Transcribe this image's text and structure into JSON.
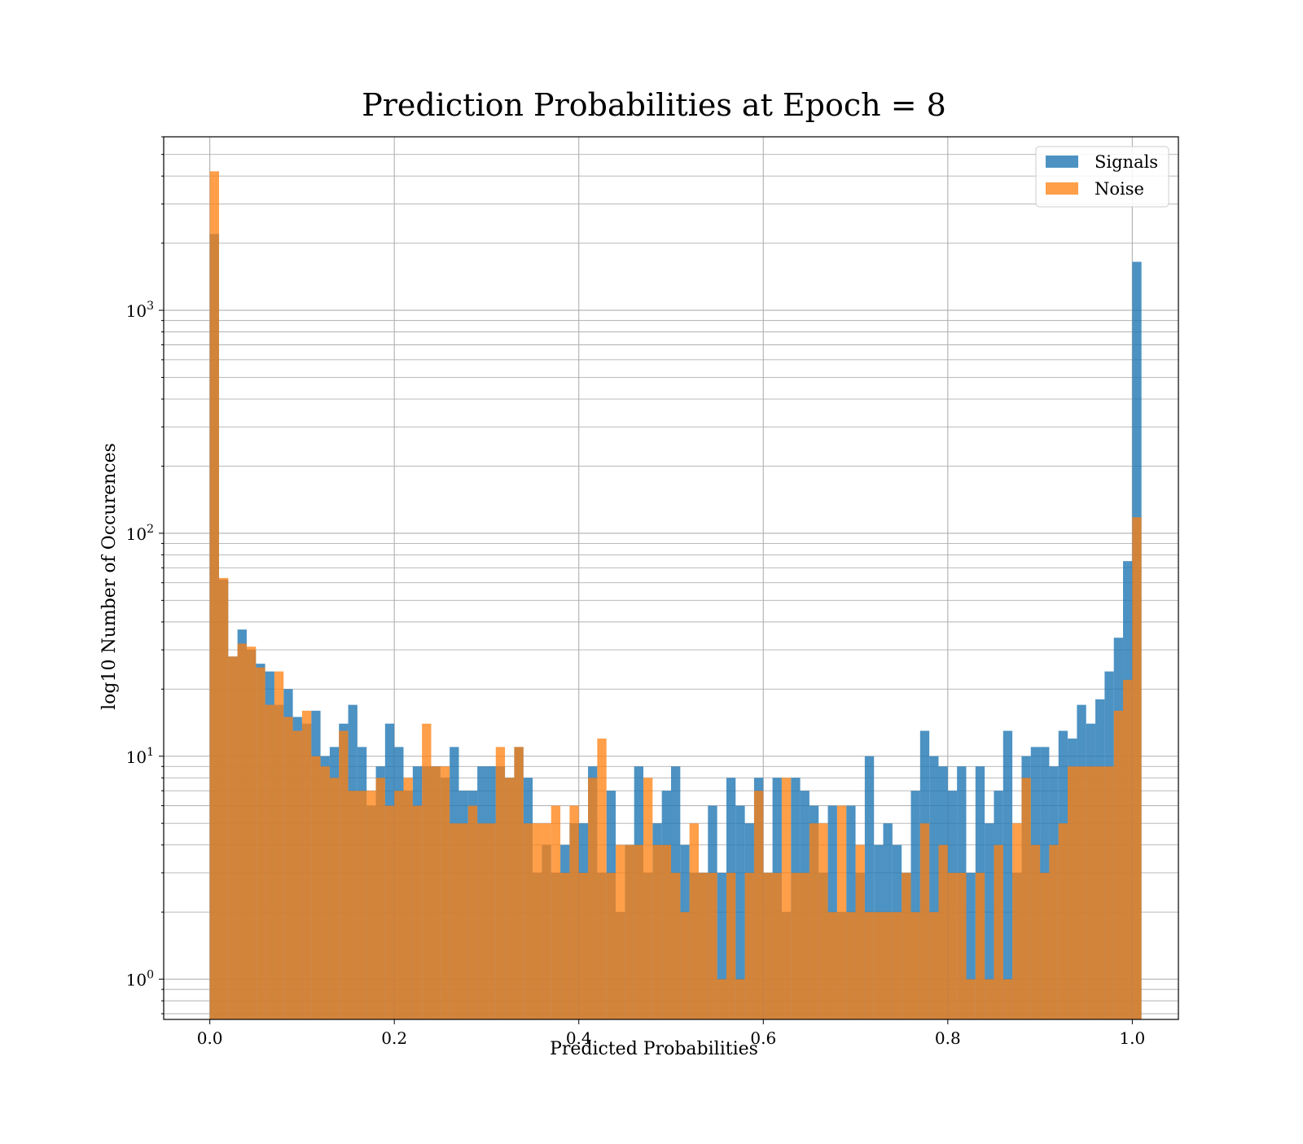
{
  "chart_data": {
    "type": "bar",
    "title": "Prediction Probabilities at Epoch = 8",
    "xlabel": "Predicted Probabilities",
    "ylabel": "log10 Number of Occurences",
    "yscale": "log",
    "xlim": [
      -0.05,
      1.05
    ],
    "ylim": [
      0.66,
      6000
    ],
    "grid": true,
    "legend_position": "top-right",
    "bin_start": 0.0,
    "bin_width": 0.01,
    "x_ticks": [
      "0.0",
      "0.2",
      "0.4",
      "0.6",
      "0.8",
      "1.0"
    ],
    "x_tick_values": [
      0.0,
      0.2,
      0.4,
      0.6,
      0.8,
      1.0
    ],
    "y_tick_values": [
      1,
      10,
      100,
      1000
    ],
    "y_ticks": [
      {
        "base": "10",
        "exp": "0"
      },
      {
        "base": "10",
        "exp": "1"
      },
      {
        "base": "10",
        "exp": "2"
      },
      {
        "base": "10",
        "exp": "3"
      }
    ],
    "series": [
      {
        "name": "Signals",
        "color": "#1f77b4",
        "opacity": 0.8,
        "values": [
          2200,
          62,
          28,
          37,
          30,
          26,
          24,
          17,
          20,
          15,
          14,
          16,
          10,
          11,
          14,
          17,
          11,
          6,
          9,
          14,
          11,
          7,
          9,
          9,
          9,
          8,
          11,
          7,
          7,
          9,
          9,
          9,
          8,
          11,
          8,
          3,
          4,
          3,
          4,
          5,
          5,
          9,
          3,
          7,
          2,
          4,
          9,
          3,
          5,
          7,
          9,
          4,
          3,
          3,
          6,
          3,
          8,
          6,
          5,
          8,
          3,
          8,
          2,
          8,
          7,
          6,
          3,
          6,
          2,
          6,
          3,
          10,
          4,
          5,
          4,
          3,
          7,
          13,
          10,
          9,
          7,
          9,
          3,
          9,
          5,
          7,
          13,
          3,
          10,
          11,
          11,
          9,
          13,
          12,
          17,
          14,
          18,
          24,
          34,
          75,
          1650
        ]
      },
      {
        "name": "Noise",
        "color": "#ff7f0e",
        "opacity": 0.75,
        "values": [
          4200,
          63,
          28,
          32,
          31,
          25,
          17,
          24,
          15,
          13,
          16,
          10,
          9,
          8,
          13,
          7,
          7,
          7,
          8,
          6,
          7,
          8,
          6,
          14,
          9,
          9,
          5,
          5,
          6,
          5,
          5,
          11,
          8,
          11,
          5,
          5,
          5,
          6,
          3,
          6,
          3,
          8,
          12,
          3,
          4,
          4,
          4,
          8,
          4,
          4,
          3,
          2,
          5,
          3,
          3,
          1,
          3,
          1,
          3,
          7,
          3,
          3,
          8,
          3,
          3,
          5,
          5,
          2,
          6,
          2,
          4,
          2,
          2,
          2,
          2,
          3,
          2,
          5,
          2,
          4,
          3,
          3,
          1,
          3,
          1,
          4,
          1,
          5,
          8,
          4,
          3,
          4,
          5,
          9,
          9,
          9,
          9,
          9,
          16,
          22,
          118
        ]
      }
    ]
  }
}
